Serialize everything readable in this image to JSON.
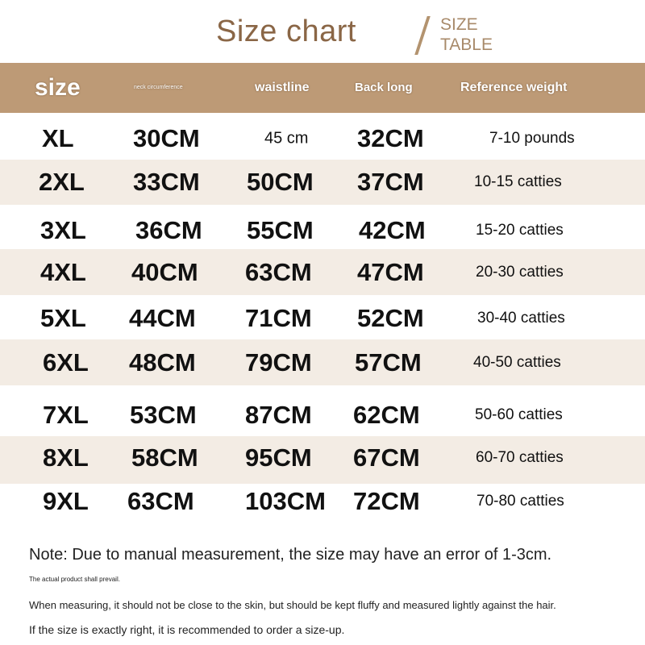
{
  "title": "Size chart",
  "subtitle_line1": "SIZE",
  "subtitle_line2": "TABLE",
  "colors": {
    "header_bg": "#bd9a76",
    "title": "#8a6646",
    "band": "#f3ece4"
  },
  "headers": [
    "size",
    "neck circumference",
    "waistline",
    "Back long",
    "Reference weight"
  ],
  "rows": [
    [
      "XL",
      "30CM",
      "45 cm",
      "32CM",
      "7-10 pounds"
    ],
    [
      "2XL",
      "33CM",
      "50CM",
      "37CM",
      "10-15 catties"
    ],
    [
      "3XL",
      "36CM",
      "55CM",
      "42CM",
      "15-20 catties"
    ],
    [
      "4XL",
      "40CM",
      "63CM",
      "47CM",
      "20-30 catties"
    ],
    [
      "5XL",
      "44CM",
      "71CM",
      "52CM",
      "30-40 catties"
    ],
    [
      "6XL",
      "48CM",
      "79CM",
      "57CM",
      "40-50 catties"
    ],
    [
      "7XL",
      "53CM",
      "87CM",
      "62CM",
      "50-60 catties"
    ],
    [
      "8XL",
      "58CM",
      "95CM",
      "67CM",
      "60-70 catties"
    ],
    [
      "9XL",
      "63CM",
      "103CM",
      "72CM",
      "70-80 catties"
    ]
  ],
  "notes": {
    "main": "Note: Due to manual measurement, the size may have an error of 1-3cm.",
    "prevail": "The actual product shall prevail.",
    "measuring": "When measuring, it should not be close to the skin, but should be kept fluffy and measured lightly against the hair.",
    "sizeup": "If the size is exactly right, it is recommended to order a size-up."
  }
}
